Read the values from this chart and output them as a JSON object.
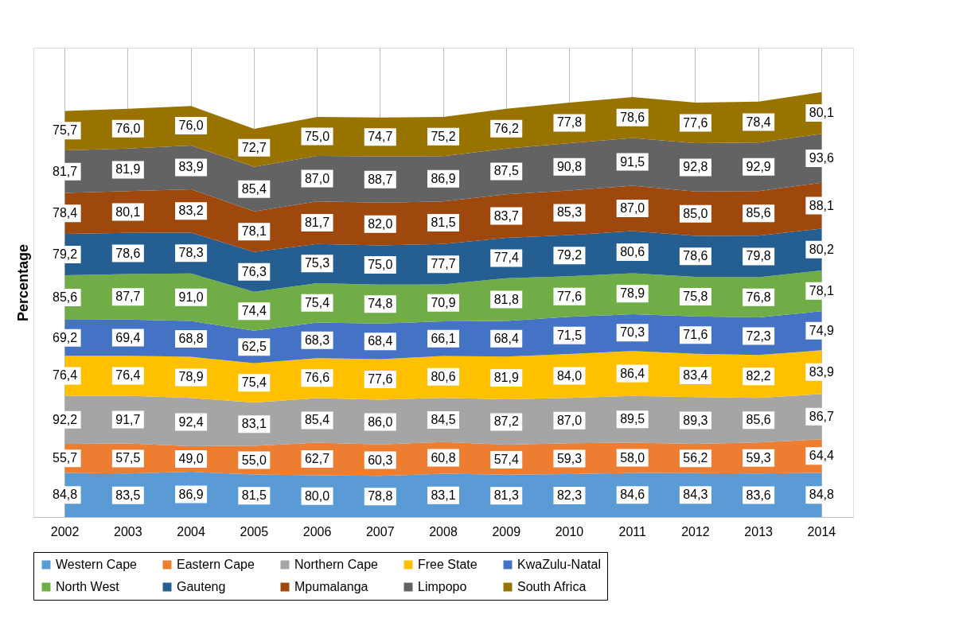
{
  "chart_data": {
    "type": "area",
    "stacked": true,
    "ylabel": "Percentage",
    "grid": "x",
    "legend": "bottom",
    "tick_labels": "x",
    "categories": [
      "2002",
      "2003",
      "2004",
      "2005",
      "2006",
      "2007",
      "2008",
      "2009",
      "2010",
      "2011",
      "2012",
      "2013",
      "2014"
    ],
    "series": [
      {
        "name": "Western Cape",
        "color": "#5b9bd5",
        "values": [
          84.8,
          83.5,
          86.9,
          81.5,
          80.0,
          78.8,
          83.1,
          81.3,
          82.3,
          84.6,
          84.3,
          83.6,
          84.8
        ],
        "value_labels": [
          "84,8",
          "83,5",
          "86,9",
          "81,5",
          "80,0",
          "78,8",
          "83,1",
          "81,3",
          "82,3",
          "84,6",
          "84,3",
          "83,6",
          "84,8"
        ]
      },
      {
        "name": "Eastern Cape",
        "color": "#ed7d31",
        "values": [
          55.7,
          57.5,
          49.0,
          55.0,
          62.7,
          60.3,
          60.8,
          57.4,
          59.3,
          58.0,
          56.2,
          59.3,
          64.4
        ],
        "value_labels": [
          "55,7",
          "57,5",
          "49,0",
          "55,0",
          "62,7",
          "60,3",
          "60,8",
          "57,4",
          "59,3",
          "58,0",
          "56,2",
          "59,3",
          "64,4"
        ]
      },
      {
        "name": "Northern Cape",
        "color": "#a5a5a5",
        "values": [
          92.2,
          91.7,
          92.4,
          83.1,
          85.4,
          86.0,
          84.5,
          87.2,
          87.0,
          89.5,
          89.3,
          85.6,
          86.7
        ],
        "value_labels": [
          "92,2",
          "91,7",
          "92,4",
          "83,1",
          "85,4",
          "86,0",
          "84,5",
          "87,2",
          "87,0",
          "89,5",
          "89,3",
          "85,6",
          "86,7"
        ]
      },
      {
        "name": "Free State",
        "color": "#ffc000",
        "values": [
          76.4,
          76.4,
          78.9,
          75.4,
          76.6,
          77.6,
          80.6,
          81.9,
          84.0,
          86.4,
          83.4,
          82.2,
          83.9
        ],
        "value_labels": [
          "76,4",
          "76,4",
          "78,9",
          "75,4",
          "76,6",
          "77,6",
          "80,6",
          "81,9",
          "84,0",
          "86,4",
          "83,4",
          "82,2",
          "83,9"
        ]
      },
      {
        "name": "KwaZulu-Natal",
        "color": "#4472c4",
        "values": [
          69.2,
          69.4,
          68.8,
          62.5,
          68.3,
          68.4,
          66.1,
          68.4,
          71.5,
          70.3,
          71.6,
          72.3,
          74.9
        ],
        "value_labels": [
          "69,2",
          "69,4",
          "68,8",
          "62,5",
          "68,3",
          "68,4",
          "66,1",
          "68,4",
          "71,5",
          "70,3",
          "71,6",
          "72,3",
          "74,9"
        ]
      },
      {
        "name": "North West",
        "color": "#70ad47",
        "values": [
          85.6,
          87.7,
          91.0,
          74.4,
          75.4,
          74.8,
          70.9,
          81.8,
          77.6,
          78.9,
          75.8,
          76.8,
          78.1
        ],
        "value_labels": [
          "85,6",
          "87,7",
          "91,0",
          "74,4",
          "75,4",
          "74,8",
          "70,9",
          "81,8",
          "77,6",
          "78,9",
          "75,8",
          "76,8",
          "78,1"
        ]
      },
      {
        "name": "Gauteng",
        "color": "#255e91",
        "values": [
          79.2,
          78.6,
          78.3,
          76.3,
          75.3,
          75.0,
          77.7,
          77.4,
          79.2,
          80.6,
          78.6,
          79.8,
          80.2
        ],
        "value_labels": [
          "79,2",
          "78,6",
          "78,3",
          "76,3",
          "75,3",
          "75,0",
          "77,7",
          "77,4",
          "79,2",
          "80,6",
          "78,6",
          "79,8",
          "80,2"
        ]
      },
      {
        "name": "Mpumalanga",
        "color": "#9e480e",
        "values": [
          78.4,
          80.1,
          83.2,
          78.1,
          81.7,
          82.0,
          81.5,
          83.7,
          85.3,
          87.0,
          85.0,
          85.6,
          88.1
        ],
        "value_labels": [
          "78,4",
          "80,1",
          "83,2",
          "78,1",
          "81,7",
          "82,0",
          "81,5",
          "83,7",
          "85,3",
          "87,0",
          "85,0",
          "85,6",
          "88,1"
        ]
      },
      {
        "name": "Limpopo",
        "color": "#636363",
        "values": [
          81.7,
          81.9,
          83.9,
          85.4,
          87.0,
          88.7,
          86.9,
          87.5,
          90.8,
          91.5,
          92.8,
          92.9,
          93.6
        ],
        "value_labels": [
          "81,7",
          "81,9",
          "83,9",
          "85,4",
          "87,0",
          "88,7",
          "86,9",
          "87,5",
          "90,8",
          "91,5",
          "92,8",
          "92,9",
          "93,6"
        ]
      },
      {
        "name": "South Africa",
        "color": "#997300",
        "values": [
          75.7,
          76.0,
          76.0,
          72.7,
          75.0,
          74.7,
          75.2,
          76.2,
          77.8,
          78.6,
          77.6,
          78.4,
          80.1
        ],
        "value_labels": [
          "75,7",
          "76,0",
          "76,0",
          "72,7",
          "75,0",
          "74,7",
          "75,2",
          "76,2",
          "77,8",
          "78,6",
          "77,6",
          "78,4",
          "80,1"
        ]
      }
    ]
  }
}
